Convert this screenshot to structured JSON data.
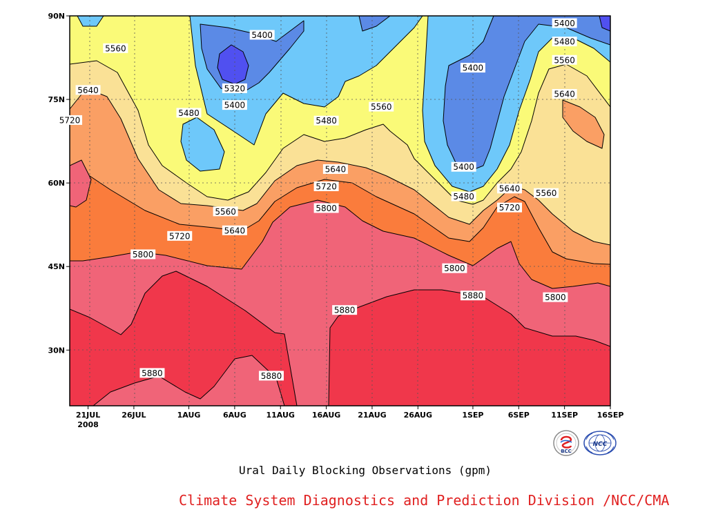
{
  "chart_data": {
    "type": "heatmap",
    "subtype": "filled-contour",
    "title": "Ural Daily Blocking Observations (gpm)",
    "credit": "Climate System Diagnostics and Prediction Division /NCC/CMA",
    "logos": [
      "BCC",
      "NCC"
    ],
    "x_axis": {
      "ticks": [
        "21JUL",
        "26JUL",
        "1AUG",
        "6AUG",
        "11AUG",
        "16AUG",
        "21AUG",
        "26AUG",
        "1SEP",
        "6SEP",
        "11SEP",
        "16SEP"
      ],
      "year_label": "2008",
      "range": [
        "2008-07-19",
        "2008-09-16"
      ]
    },
    "y_axis": {
      "ticks": [
        "30N",
        "45N",
        "60N",
        "75N",
        "90N"
      ],
      "range": [
        20,
        90
      ],
      "units": "degrees north"
    },
    "grid": true,
    "contour_levels": [
      5320,
      5400,
      5480,
      5560,
      5640,
      5720,
      5800,
      5880
    ],
    "fill_colors": {
      "below_5320": "#5050f0",
      "5320_5400": "#5b8ae6",
      "5400_5480": "#6ec8fa",
      "5480_5560": "#fafa78",
      "5560_5640": "#fae196",
      "5640_5720": "#fa9f64",
      "5720_5800": "#fa7c3c",
      "5800_5880": "#f06478",
      "above_5880": "#f0374b"
    },
    "contour_labels": [
      {
        "value": "5560",
        "date": "2008-07-24",
        "lat": 84.2
      },
      {
        "value": "5640",
        "date": "2008-07-21",
        "lat": 76.7
      },
      {
        "value": "5720",
        "date": "2008-07-19",
        "lat": 71.3
      },
      {
        "value": "5480",
        "date": "2008-08-01",
        "lat": 72.6
      },
      {
        "value": "5400",
        "date": "2008-08-09",
        "lat": 86.6
      },
      {
        "value": "5320",
        "date": "2008-08-06",
        "lat": 77.0
      },
      {
        "value": "5400",
        "date": "2008-08-06",
        "lat": 74.0
      },
      {
        "value": "5480",
        "date": "2008-08-16",
        "lat": 71.2
      },
      {
        "value": "5560",
        "date": "2008-08-22",
        "lat": 73.7
      },
      {
        "value": "5640",
        "date": "2008-08-17",
        "lat": 62.5
      },
      {
        "value": "5720",
        "date": "2008-08-16",
        "lat": 59.4
      },
      {
        "value": "5800",
        "date": "2008-08-16",
        "lat": 55.5
      },
      {
        "value": "5560",
        "date": "2008-08-05",
        "lat": 54.9
      },
      {
        "value": "5640",
        "date": "2008-08-06",
        "lat": 51.5
      },
      {
        "value": "5720",
        "date": "2008-07-31",
        "lat": 50.5
      },
      {
        "value": "5800",
        "date": "2008-07-27",
        "lat": 47.2
      },
      {
        "value": "5400",
        "date": "2008-08-31",
        "lat": 62.9
      },
      {
        "value": "5480",
        "date": "2008-08-31",
        "lat": 57.6
      },
      {
        "value": "5400",
        "date": "2008-09-01",
        "lat": 80.7
      },
      {
        "value": "5400",
        "date": "2008-09-11",
        "lat": 88.7
      },
      {
        "value": "5480",
        "date": "2008-09-11",
        "lat": 85.4
      },
      {
        "value": "5560",
        "date": "2008-09-11",
        "lat": 82.1
      },
      {
        "value": "5640",
        "date": "2008-09-11",
        "lat": 76.0
      },
      {
        "value": "5640",
        "date": "2008-09-05",
        "lat": 59.0
      },
      {
        "value": "5720",
        "date": "2008-09-05",
        "lat": 55.6
      },
      {
        "value": "5560",
        "date": "2008-09-09",
        "lat": 58.2
      },
      {
        "value": "5800",
        "date": "2008-08-30",
        "lat": 44.7
      },
      {
        "value": "5880",
        "date": "2008-09-01",
        "lat": 39.8
      },
      {
        "value": "5800",
        "date": "2008-09-10",
        "lat": 39.5
      },
      {
        "value": "5880",
        "date": "2008-08-18",
        "lat": 37.2
      },
      {
        "value": "5880",
        "date": "2008-07-28",
        "lat": 25.9
      },
      {
        "value": "5880",
        "date": "2008-08-10",
        "lat": 25.4
      }
    ]
  }
}
